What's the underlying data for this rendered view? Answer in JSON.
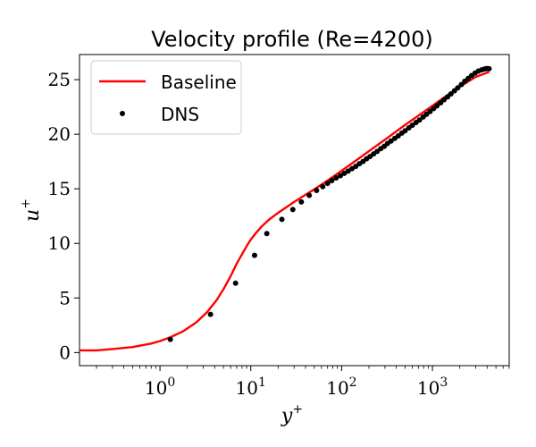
{
  "chart_data": {
    "type": "line",
    "title": "Velocity profile (Re=4200)",
    "xlabel": "y",
    "xlabel_sup": "+",
    "ylabel": "u",
    "ylabel_sup": "+",
    "x_scale": "log",
    "xlim": [
      0.13,
      7000
    ],
    "ylim": [
      -1.2,
      27.3
    ],
    "x_ticks": [
      {
        "value": 1,
        "base": "10",
        "exp": "0"
      },
      {
        "value": 10,
        "base": "10",
        "exp": "1"
      },
      {
        "value": 100,
        "base": "10",
        "exp": "2"
      },
      {
        "value": 1000,
        "base": "10",
        "exp": "3"
      }
    ],
    "y_ticks": [
      0,
      5,
      10,
      15,
      20,
      25
    ],
    "grid": false,
    "legend": {
      "position": "upper-left",
      "entries": [
        {
          "label": "Baseline",
          "marker": "line",
          "color": "#ff0000"
        },
        {
          "label": "DNS",
          "marker": "dot",
          "color": "#000000"
        }
      ]
    },
    "series": [
      {
        "name": "Baseline",
        "kind": "line",
        "color": "#ff0000",
        "x": [
          0.13,
          0.2,
          0.3,
          0.5,
          0.8,
          1.0,
          1.3,
          1.8,
          2.5,
          3.3,
          4.2,
          5.0,
          6.0,
          7.0,
          8.0,
          9.0,
          10.0,
          11.0,
          13.0,
          16.0,
          20.0,
          25.0,
          30.0,
          40.0,
          50.0,
          70.0,
          100.0,
          150.0,
          200.0,
          300.0,
          500.0,
          700.0,
          1000.0,
          1500.0,
          2000.0,
          3000.0,
          4200.0
        ],
        "y": [
          0.2,
          0.2,
          0.32,
          0.5,
          0.82,
          1.05,
          1.4,
          1.95,
          2.75,
          3.7,
          4.8,
          5.8,
          7.0,
          8.15,
          9.0,
          9.75,
          10.35,
          10.8,
          11.5,
          12.2,
          12.8,
          13.35,
          13.8,
          14.45,
          14.95,
          15.75,
          16.65,
          17.7,
          18.45,
          19.5,
          20.85,
          21.7,
          22.6,
          23.65,
          24.35,
          25.25,
          25.7
        ]
      },
      {
        "name": "DNS",
        "kind": "scatter",
        "color": "#000000",
        "x": [
          1.3,
          3.6,
          6.8,
          11.0,
          15.0,
          22.0,
          29.0,
          36.0,
          44.0,
          53.0,
          62.0,
          70.0,
          78.0,
          87.0,
          97.0,
          107.0,
          118.0,
          130.0,
          143.0,
          157.0,
          172.0,
          188.0,
          205.0,
          225.0,
          246.0,
          270.0,
          295.0,
          320.0,
          350.0,
          385.0,
          420.0,
          460.0,
          500.0,
          550.0,
          600.0,
          660.0,
          720.0,
          790.0,
          860.0,
          940.0,
          1030.0,
          1120.0,
          1230.0,
          1340.0,
          1470.0,
          1600.0,
          1750.0,
          1900.0,
          2080.0,
          2270.0,
          2480.0,
          2700.0,
          2950.0,
          3200.0,
          3480.0,
          3750.0,
          4000.0,
          4200.0
        ],
        "y": [
          1.2,
          3.5,
          6.35,
          8.9,
          10.9,
          12.2,
          13.1,
          13.8,
          14.4,
          14.85,
          15.2,
          15.5,
          15.75,
          16.0,
          16.2,
          16.42,
          16.62,
          16.85,
          17.05,
          17.3,
          17.5,
          17.75,
          17.95,
          18.2,
          18.42,
          18.68,
          18.9,
          19.15,
          19.38,
          19.62,
          19.85,
          20.1,
          20.32,
          20.58,
          20.82,
          21.08,
          21.3,
          21.58,
          21.82,
          22.08,
          22.35,
          22.6,
          22.88,
          23.15,
          23.42,
          23.7,
          23.98,
          24.25,
          24.55,
          24.85,
          25.12,
          25.38,
          25.6,
          25.78,
          25.9,
          25.98,
          26.02,
          26.0
        ]
      }
    ]
  }
}
